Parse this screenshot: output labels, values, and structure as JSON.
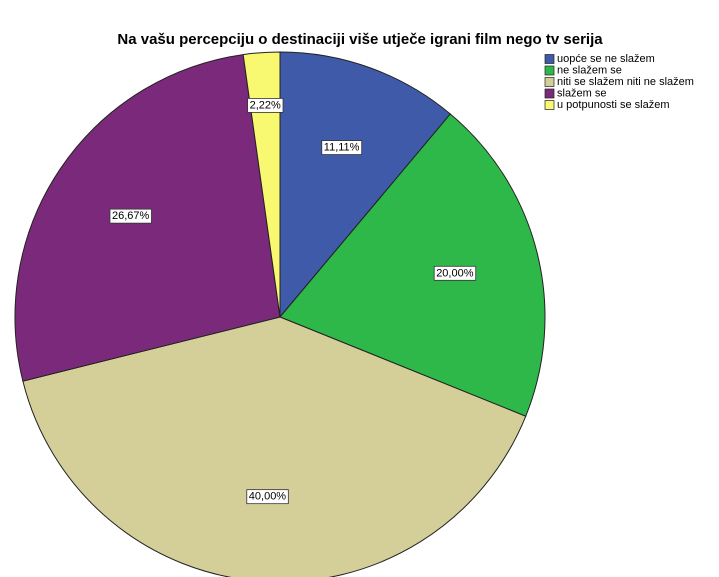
{
  "chart_data": {
    "type": "pie",
    "title": "Na vašu percepciju o destinaciji više utječe igrani film nego tv serija",
    "categories": [
      "uopće se ne slažem",
      "ne slažem se",
      "niti se slažem niti ne slažem",
      "slažem se",
      "u potpunosti se slažem"
    ],
    "values": [
      11.11,
      20.0,
      40.0,
      26.67,
      2.22
    ],
    "value_labels": [
      "11,11%",
      "20,00%",
      "40,00%",
      "26,67%",
      "2,22%"
    ],
    "colors": [
      "#3f5aa8",
      "#2fb84a",
      "#d4cf98",
      "#7b2a7b",
      "#f9f871"
    ],
    "legend": "top-right"
  }
}
